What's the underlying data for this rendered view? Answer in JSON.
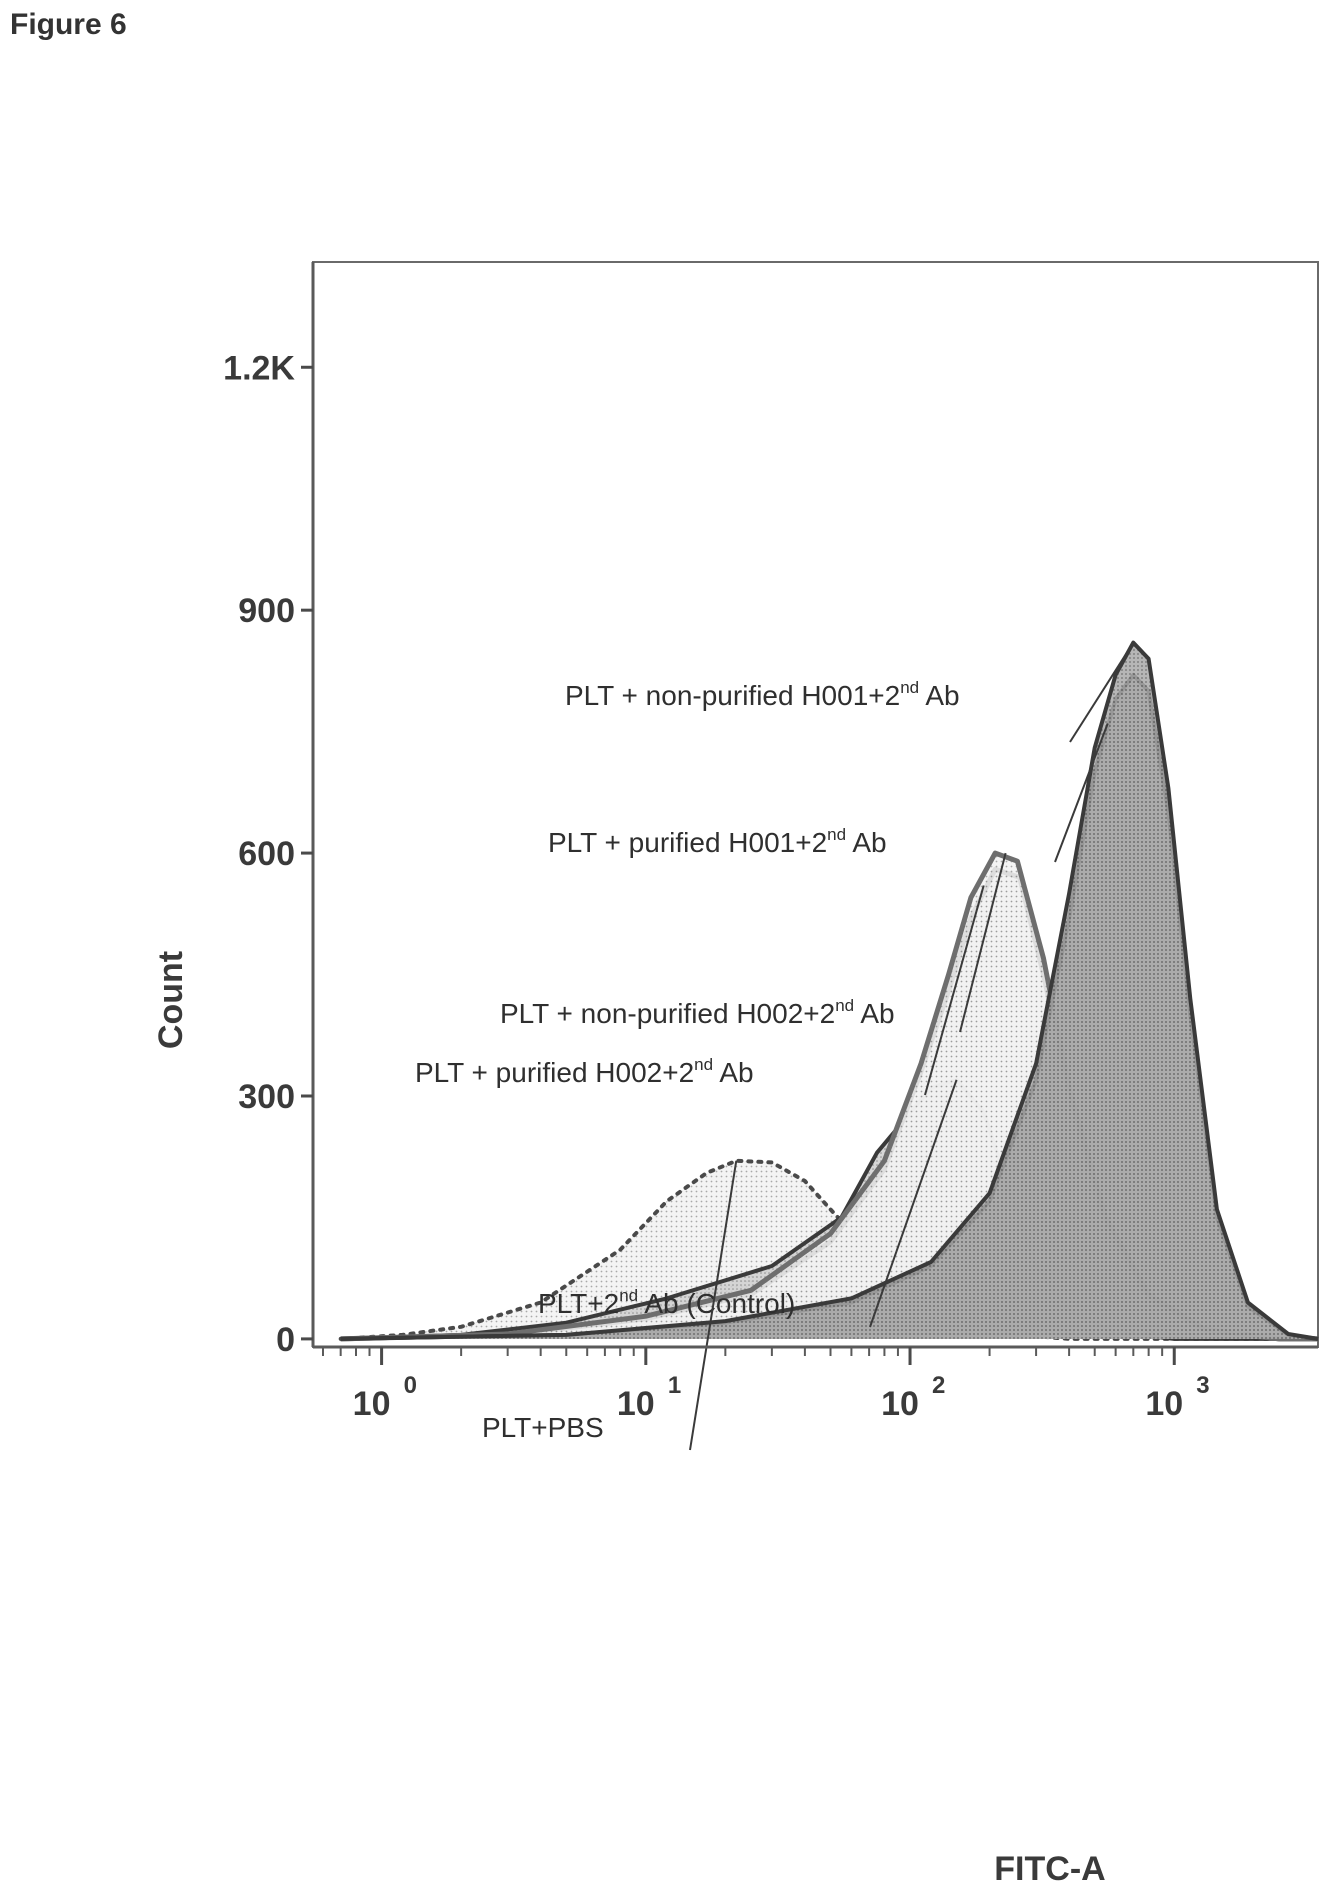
{
  "figure_label": "Figure 6",
  "chart_data": {
    "type": "area",
    "title": "",
    "xlabel": "FITC-A",
    "ylabel": "Count",
    "x_scale": "log",
    "xlim": [
      0.55,
      3500
    ],
    "ylim": [
      -10,
      1330
    ],
    "x_ticks": [
      {
        "value": 1,
        "base": "10",
        "exp": "0"
      },
      {
        "value": 10,
        "base": "10",
        "exp": "1"
      },
      {
        "value": 100,
        "base": "10",
        "exp": "2"
      },
      {
        "value": 1000,
        "base": "10",
        "exp": "3"
      }
    ],
    "y_ticks": [
      {
        "value": 0,
        "label": "0"
      },
      {
        "value": 300,
        "label": "300"
      },
      {
        "value": 600,
        "label": "600"
      },
      {
        "value": 900,
        "label": "900"
      },
      {
        "value": 1200,
        "label": "1.2K"
      }
    ],
    "grid": false,
    "legend": "none",
    "series": [
      {
        "name": "PLT+PBS",
        "style": "dotted-light",
        "points": [
          [
            0.7,
            0
          ],
          [
            1.2,
            5
          ],
          [
            2,
            15
          ],
          [
            4,
            45
          ],
          [
            8,
            110
          ],
          [
            12,
            170
          ],
          [
            17,
            205
          ],
          [
            22,
            220
          ],
          [
            30,
            218
          ],
          [
            40,
            195
          ],
          [
            50,
            160
          ],
          [
            65,
            120
          ],
          [
            90,
            70
          ],
          [
            130,
            30
          ],
          [
            200,
            8
          ],
          [
            400,
            0
          ],
          [
            3000,
            0
          ]
        ]
      },
      {
        "name": "PLT+2nd Ab (Control)",
        "style": "dark",
        "points": [
          [
            0.7,
            0
          ],
          [
            2,
            5
          ],
          [
            5,
            20
          ],
          [
            12,
            50
          ],
          [
            30,
            90
          ],
          [
            55,
            150
          ],
          [
            75,
            230
          ],
          [
            95,
            270
          ],
          [
            120,
            310
          ],
          [
            150,
            320
          ],
          [
            190,
            280
          ],
          [
            240,
            180
          ],
          [
            300,
            90
          ],
          [
            400,
            35
          ],
          [
            600,
            8
          ],
          [
            1000,
            0
          ],
          [
            3000,
            0
          ]
        ]
      },
      {
        "name": "PLT + purified H002+2nd Ab",
        "style": "light-gray",
        "points": [
          [
            0.7,
            0
          ],
          [
            3,
            5
          ],
          [
            10,
            25
          ],
          [
            25,
            55
          ],
          [
            50,
            120
          ],
          [
            80,
            210
          ],
          [
            110,
            330
          ],
          [
            140,
            430
          ],
          [
            170,
            520
          ],
          [
            210,
            580
          ],
          [
            260,
            570
          ],
          [
            320,
            450
          ],
          [
            400,
            300
          ],
          [
            550,
            140
          ],
          [
            800,
            50
          ],
          [
            1300,
            10
          ],
          [
            2500,
            0
          ],
          [
            3500,
            0
          ]
        ]
      },
      {
        "name": "PLT + non-purified H002+2nd Ab",
        "style": "light-gray",
        "points": [
          [
            0.7,
            0
          ],
          [
            3,
            6
          ],
          [
            10,
            28
          ],
          [
            25,
            60
          ],
          [
            50,
            130
          ],
          [
            80,
            220
          ],
          [
            110,
            340
          ],
          [
            140,
            450
          ],
          [
            170,
            545
          ],
          [
            210,
            600
          ],
          [
            255,
            590
          ],
          [
            320,
            470
          ],
          [
            400,
            310
          ],
          [
            550,
            150
          ],
          [
            800,
            55
          ],
          [
            1300,
            12
          ],
          [
            2500,
            0
          ],
          [
            3500,
            0
          ]
        ]
      },
      {
        "name": "PLT + purified H001+2nd Ab",
        "style": "dark",
        "points": [
          [
            0.7,
            0
          ],
          [
            5,
            5
          ],
          [
            20,
            20
          ],
          [
            60,
            45
          ],
          [
            120,
            90
          ],
          [
            200,
            170
          ],
          [
            300,
            320
          ],
          [
            400,
            520
          ],
          [
            500,
            700
          ],
          [
            600,
            790
          ],
          [
            700,
            820
          ],
          [
            800,
            800
          ],
          [
            950,
            650
          ],
          [
            1150,
            400
          ],
          [
            1450,
            150
          ],
          [
            1900,
            40
          ],
          [
            2700,
            5
          ],
          [
            3500,
            0
          ]
        ]
      },
      {
        "name": "PLT + non-purified H001+2nd Ab",
        "style": "dark",
        "points": [
          [
            0.7,
            0
          ],
          [
            5,
            5
          ],
          [
            20,
            22
          ],
          [
            60,
            50
          ],
          [
            120,
            95
          ],
          [
            200,
            180
          ],
          [
            300,
            340
          ],
          [
            400,
            550
          ],
          [
            500,
            730
          ],
          [
            600,
            820
          ],
          [
            700,
            860
          ],
          [
            800,
            840
          ],
          [
            950,
            680
          ],
          [
            1150,
            420
          ],
          [
            1450,
            160
          ],
          [
            1900,
            45
          ],
          [
            2700,
            6
          ],
          [
            3500,
            0
          ]
        ]
      }
    ],
    "annotations": [
      {
        "series": "PLT + non-purified H001+2nd Ab",
        "text_main": "PLT  +  non-purified H001+2",
        "sup": "nd",
        "text_tail": " Ab",
        "target": [
          700,
          860
        ]
      },
      {
        "series": "PLT + purified H001+2nd Ab",
        "text_main": "PLT  +  purified H001+2",
        "sup": "nd",
        "text_tail": " Ab",
        "target": [
          560,
          760
        ]
      },
      {
        "series": "PLT + non-purified H002+2nd Ab",
        "text_main": "PLT  +  non-purified H002+2",
        "sup": "nd",
        "text_tail": " Ab",
        "target": [
          230,
          600
        ]
      },
      {
        "series": "PLT + purified H002+2nd Ab",
        "text_main": "PLT  +  purified H002+2",
        "sup": "nd",
        "text_tail": " Ab",
        "target": [
          190,
          560
        ]
      },
      {
        "series": "PLT+2nd Ab (Control)",
        "text_main": "PLT+2",
        "sup": "nd",
        "text_tail": " Ab (Control)",
        "target": [
          150,
          320
        ]
      },
      {
        "series": "PLT+PBS",
        "text_main": "PLT+PBS",
        "sup": "",
        "text_tail": "",
        "target": [
          22,
          220
        ]
      }
    ]
  }
}
